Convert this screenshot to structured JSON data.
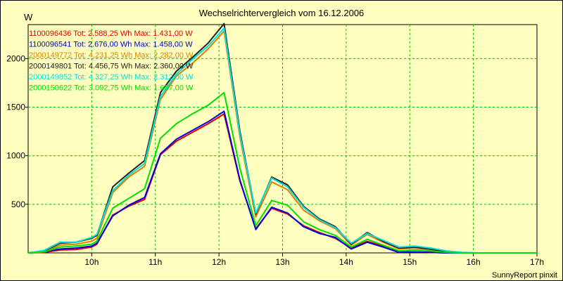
{
  "chart_data": {
    "type": "line",
    "title": "Wechselrichtervergleich vom 16.12.2006",
    "ylabel": "W",
    "xlabel": "",
    "footer": "SunnyReport pinxit",
    "ylim": [
      0,
      2350
    ],
    "yticks": [
      500,
      1000,
      1500,
      2000
    ],
    "xlim": [
      9.0,
      17.0
    ],
    "xticks": [
      10,
      11,
      12,
      13,
      14,
      15,
      16,
      17
    ],
    "xtick_labels": [
      "10h",
      "11h",
      "12h",
      "13h",
      "14h",
      "15h",
      "16h",
      "17h"
    ],
    "grid": true,
    "legend_position": "top-left",
    "x": [
      9.0,
      9.25,
      9.5,
      9.75,
      10.0,
      10.08,
      10.33,
      10.58,
      10.83,
      11.08,
      11.33,
      11.58,
      11.83,
      12.08,
      12.33,
      12.58,
      12.83,
      13.08,
      13.33,
      13.58,
      13.83,
      14.08,
      14.33,
      14.58,
      14.83,
      15.08,
      15.33,
      15.58,
      15.83,
      16.08,
      16.5,
      17.0
    ],
    "series": [
      {
        "name": "1100096436",
        "legend": "1100096436 Tot: 2.588,25 Wh Max: 1.431,00 W",
        "color": "#e00000",
        "values": [
          0,
          5,
          30,
          35,
          60,
          90,
          390,
          480,
          550,
          1010,
          1150,
          1240,
          1330,
          1431,
          740,
          250,
          460,
          400,
          280,
          210,
          150,
          50,
          120,
          70,
          10,
          10,
          5,
          0,
          0,
          0,
          0,
          0
        ]
      },
      {
        "name": "1100096541",
        "legend": "1100096541 Tot: 2.676,00 Wh Max: 1.458,00 W",
        "color": "#0000e0",
        "values": [
          0,
          10,
          40,
          50,
          70,
          100,
          380,
          490,
          570,
          1020,
          1170,
          1260,
          1350,
          1458,
          750,
          240,
          470,
          410,
          270,
          200,
          160,
          40,
          110,
          60,
          5,
          10,
          5,
          0,
          0,
          0,
          0,
          0
        ]
      },
      {
        "name": "2000149772",
        "legend": "2000149772 Tot: 4.231,25 Wh Max: 2.282,00 W",
        "color": "#e08000",
        "values": [
          0,
          15,
          80,
          90,
          120,
          150,
          620,
          780,
          890,
          1580,
          1820,
          1950,
          2100,
          2282,
          1190,
          370,
          730,
          650,
          440,
          330,
          250,
          80,
          190,
          110,
          40,
          50,
          30,
          10,
          0,
          0,
          0,
          0
        ]
      },
      {
        "name": "2000149801",
        "legend": "2000149801 Tot: 4.456,75 Wh Max: 2.360,00 W",
        "color": "#202020",
        "values": [
          0,
          20,
          100,
          110,
          150,
          180,
          680,
          820,
          950,
          1650,
          1870,
          2010,
          2160,
          2360,
          1250,
          400,
          780,
          700,
          480,
          350,
          270,
          90,
          210,
          120,
          50,
          60,
          40,
          10,
          0,
          0,
          0,
          0
        ]
      },
      {
        "name": "2000149852",
        "legend": "2000149852 Tot: 4.327,25 Wh Max: 2.312,00 W",
        "color": "#00e0e0",
        "values": [
          0,
          25,
          110,
          110,
          160,
          190,
          640,
          800,
          920,
          1610,
          1840,
          1990,
          2130,
          2312,
          1220,
          410,
          770,
          680,
          470,
          340,
          260,
          100,
          200,
          130,
          60,
          70,
          50,
          20,
          5,
          0,
          0,
          0
        ]
      },
      {
        "name": "2000150622",
        "legend": "2000150622 Tot: 3.092,75 Wh Max: 1.657,00 W",
        "color": "#00e000",
        "values": [
          0,
          10,
          60,
          70,
          90,
          120,
          460,
          560,
          660,
          1180,
          1330,
          1430,
          1520,
          1650,
          870,
          280,
          540,
          490,
          320,
          240,
          180,
          60,
          140,
          80,
          20,
          30,
          20,
          5,
          0,
          0,
          0,
          0
        ]
      }
    ]
  }
}
